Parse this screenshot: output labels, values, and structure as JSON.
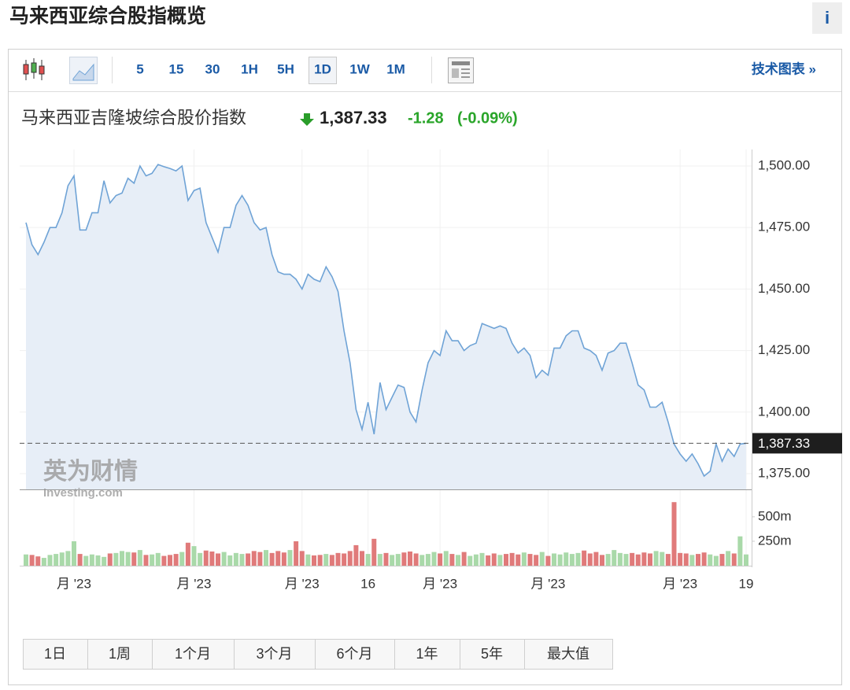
{
  "header": {
    "title": "马来西亚综合股指概览",
    "info": "i"
  },
  "toolbar": {
    "intervals": [
      "5",
      "15",
      "30",
      "1H",
      "5H",
      "1D",
      "1W",
      "1M"
    ],
    "selected": "1D",
    "tech_chart": "技术图表 »"
  },
  "quote": {
    "name": "马来西亚吉隆坡综合股价指数",
    "price": "1,387.33",
    "change": "-1.28",
    "change_pct": "(-0.09%)"
  },
  "chart_data": {
    "type": "line",
    "categories": [
      null,
      null,
      null,
      null,
      null,
      null,
      null,
      null,
      "月 '23",
      null,
      null,
      null,
      null,
      null,
      null,
      null,
      null,
      null,
      null,
      null,
      null,
      null,
      null,
      null,
      null,
      null,
      null,
      null,
      "月 '23",
      null,
      null,
      null,
      null,
      null,
      null,
      null,
      null,
      null,
      null,
      null,
      null,
      null,
      null,
      null,
      null,
      null,
      "月 '23",
      null,
      null,
      null,
      null,
      null,
      null,
      null,
      null,
      null,
      null,
      "16",
      null,
      null,
      null,
      null,
      null,
      null,
      null,
      null,
      null,
      null,
      null,
      "月 '23",
      null,
      null,
      null,
      null,
      null,
      null,
      null,
      null,
      null,
      null,
      null,
      null,
      null,
      null,
      null,
      null,
      null,
      "月 '23",
      null,
      null,
      null,
      null,
      null,
      null,
      null,
      null,
      null,
      null,
      null,
      null,
      null,
      null,
      null,
      null,
      null,
      null,
      null,
      null,
      null,
      "月 '23",
      null,
      null,
      null,
      null,
      null,
      null,
      null,
      null,
      null,
      null,
      "19"
    ],
    "values": [
      1477,
      1468,
      1464,
      1469,
      1475,
      1475,
      1481,
      1492,
      1496,
      1474,
      1474,
      1481,
      1481,
      1494,
      1485,
      1488,
      1489,
      1495,
      1493,
      1500,
      1496,
      1497,
      1500.6,
      1499.7,
      1499,
      1498,
      1500,
      1486,
      1490,
      1491,
      1477,
      1471,
      1465,
      1475,
      1475,
      1484,
      1488,
      1484,
      1477,
      1474,
      1475,
      1464,
      1457,
      1456,
      1456,
      1454,
      1450,
      1456,
      1454,
      1453,
      1459,
      1455,
      1449,
      1433,
      1420,
      1401,
      1393,
      1404,
      1391,
      1412,
      1401,
      1406,
      1411,
      1410,
      1400,
      1396,
      1409,
      1420,
      1425,
      1423,
      1433,
      1429,
      1429,
      1425,
      1427,
      1428,
      1436,
      1435,
      1434,
      1435,
      1434,
      1428,
      1424,
      1426,
      1423,
      1414,
      1417,
      1415,
      1426,
      1426,
      1431,
      1433,
      1433,
      1426,
      1425,
      1423,
      1417,
      1424,
      1425,
      1428,
      1428,
      1420,
      1411,
      1409,
      1402,
      1402,
      1404,
      1396,
      1387,
      1383,
      1380,
      1383,
      1379,
      1374,
      1376,
      1387,
      1380,
      1385,
      1382,
      1387,
      1387.33
    ],
    "color": "#6fa3d6",
    "fill": "#e7eef7",
    "ylim": [
      1368.6,
      1506.7
    ],
    "yticks": [
      {
        "value": 1375,
        "label": "1,375.00"
      },
      {
        "value": 1400,
        "label": "1,400.00"
      },
      {
        "value": 1425,
        "label": "1,425.00"
      },
      {
        "value": 1450,
        "label": "1,450.00"
      },
      {
        "value": 1475,
        "label": "1,475.00"
      },
      {
        "value": 1500,
        "label": "1,500.00"
      }
    ],
    "grid": true,
    "volume": {
      "values": [
        115,
        110,
        95,
        80,
        110,
        120,
        135,
        150,
        250,
        120,
        100,
        115,
        105,
        90,
        125,
        130,
        150,
        140,
        135,
        160,
        110,
        115,
        130,
        100,
        110,
        120,
        140,
        235,
        200,
        130,
        155,
        145,
        125,
        140,
        105,
        130,
        120,
        125,
        150,
        140,
        160,
        130,
        150,
        135,
        160,
        250,
        150,
        115,
        105,
        110,
        120,
        110,
        130,
        125,
        150,
        210,
        150,
        120,
        275,
        120,
        130,
        110,
        120,
        135,
        145,
        125,
        110,
        120,
        140,
        125,
        150,
        120,
        110,
        140,
        100,
        115,
        130,
        105,
        125,
        110,
        120,
        130,
        115,
        135,
        120,
        110,
        140,
        100,
        125,
        115,
        135,
        120,
        130,
        155,
        125,
        140,
        110,
        120,
        160,
        130,
        120,
        130,
        115,
        135,
        125,
        150,
        140,
        120,
        650,
        130,
        125,
        110,
        120,
        135,
        115,
        100,
        120,
        150,
        125,
        300,
        115
      ],
      "ylim": [
        0,
        700
      ],
      "yticks": [
        {
          "value": 250,
          "label": "250m"
        },
        {
          "value": 500,
          "label": "500m"
        }
      ],
      "up_color": "#a9d9a9",
      "down_color": "#e07a7a"
    },
    "watermark": {
      "cn": "英为财情",
      "en": "Investing.com"
    }
  },
  "ranges": [
    "1日",
    "1周",
    "1个月",
    "3个月",
    "6个月",
    "1年",
    "5年",
    "最大值"
  ]
}
